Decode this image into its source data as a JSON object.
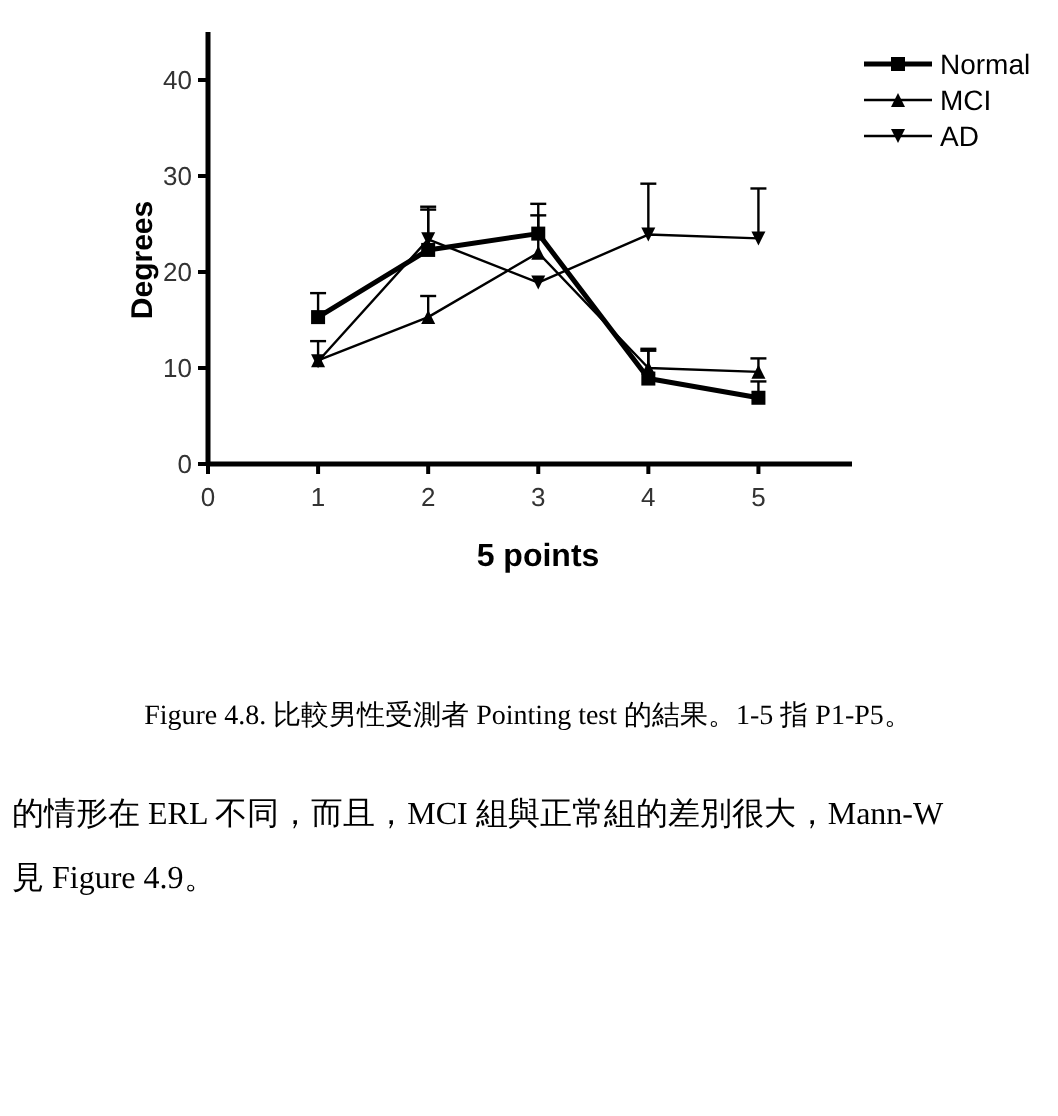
{
  "chart_data": {
    "type": "line",
    "xlabel": "5 points",
    "ylabel": "Degrees",
    "x": [
      1,
      2,
      3,
      4,
      5
    ],
    "xlim": [
      0,
      5.85
    ],
    "xticks": [
      0,
      1,
      2,
      3,
      4,
      5
    ],
    "ylim": [
      0,
      45
    ],
    "yticks": [
      0,
      10,
      20,
      30,
      40
    ],
    "legend": "top right",
    "grid": false,
    "line_style": "solid",
    "series": [
      {
        "name": "Normal",
        "color": "#000000",
        "marker": "square",
        "values": [
          15.3,
          22.3,
          24.0,
          8.9,
          6.9
        ],
        "errors": [
          [
            15.3,
            17.8
          ],
          [
            22.3,
            26.5
          ],
          [
            24.0,
            27.1
          ],
          [
            8.9,
            11.8
          ],
          [
            6.9,
            8.6
          ]
        ]
      },
      {
        "name": "MCI",
        "color": "#000000",
        "marker": "triangle",
        "values": [
          10.8,
          15.3,
          22.0,
          10.0,
          9.6
        ],
        "errors": [
          [
            10.8,
            12.8
          ],
          [
            15.3,
            17.5
          ],
          [
            22.0,
            25.9
          ],
          [
            10.0,
            12.0
          ],
          [
            9.6,
            11.0
          ]
        ]
      },
      {
        "name": "AD",
        "color": "#000000",
        "marker": "triangle-down",
        "values": [
          10.7,
          23.4,
          18.9,
          23.9,
          23.5
        ],
        "errors": [
          null,
          [
            23.4,
            26.8
          ],
          null,
          [
            23.9,
            29.2
          ],
          [
            23.5,
            28.7
          ]
        ]
      }
    ],
    "annotations": [
      "Figure 4.8. 比較男性受測者 Pointing test 的結果。1-5 指 P1-P5。",
      "的情形在 ERL 不同，而且，MCI 組與正常組的差別很大，Mann-W",
      "見 Figure 4.9。"
    ]
  }
}
